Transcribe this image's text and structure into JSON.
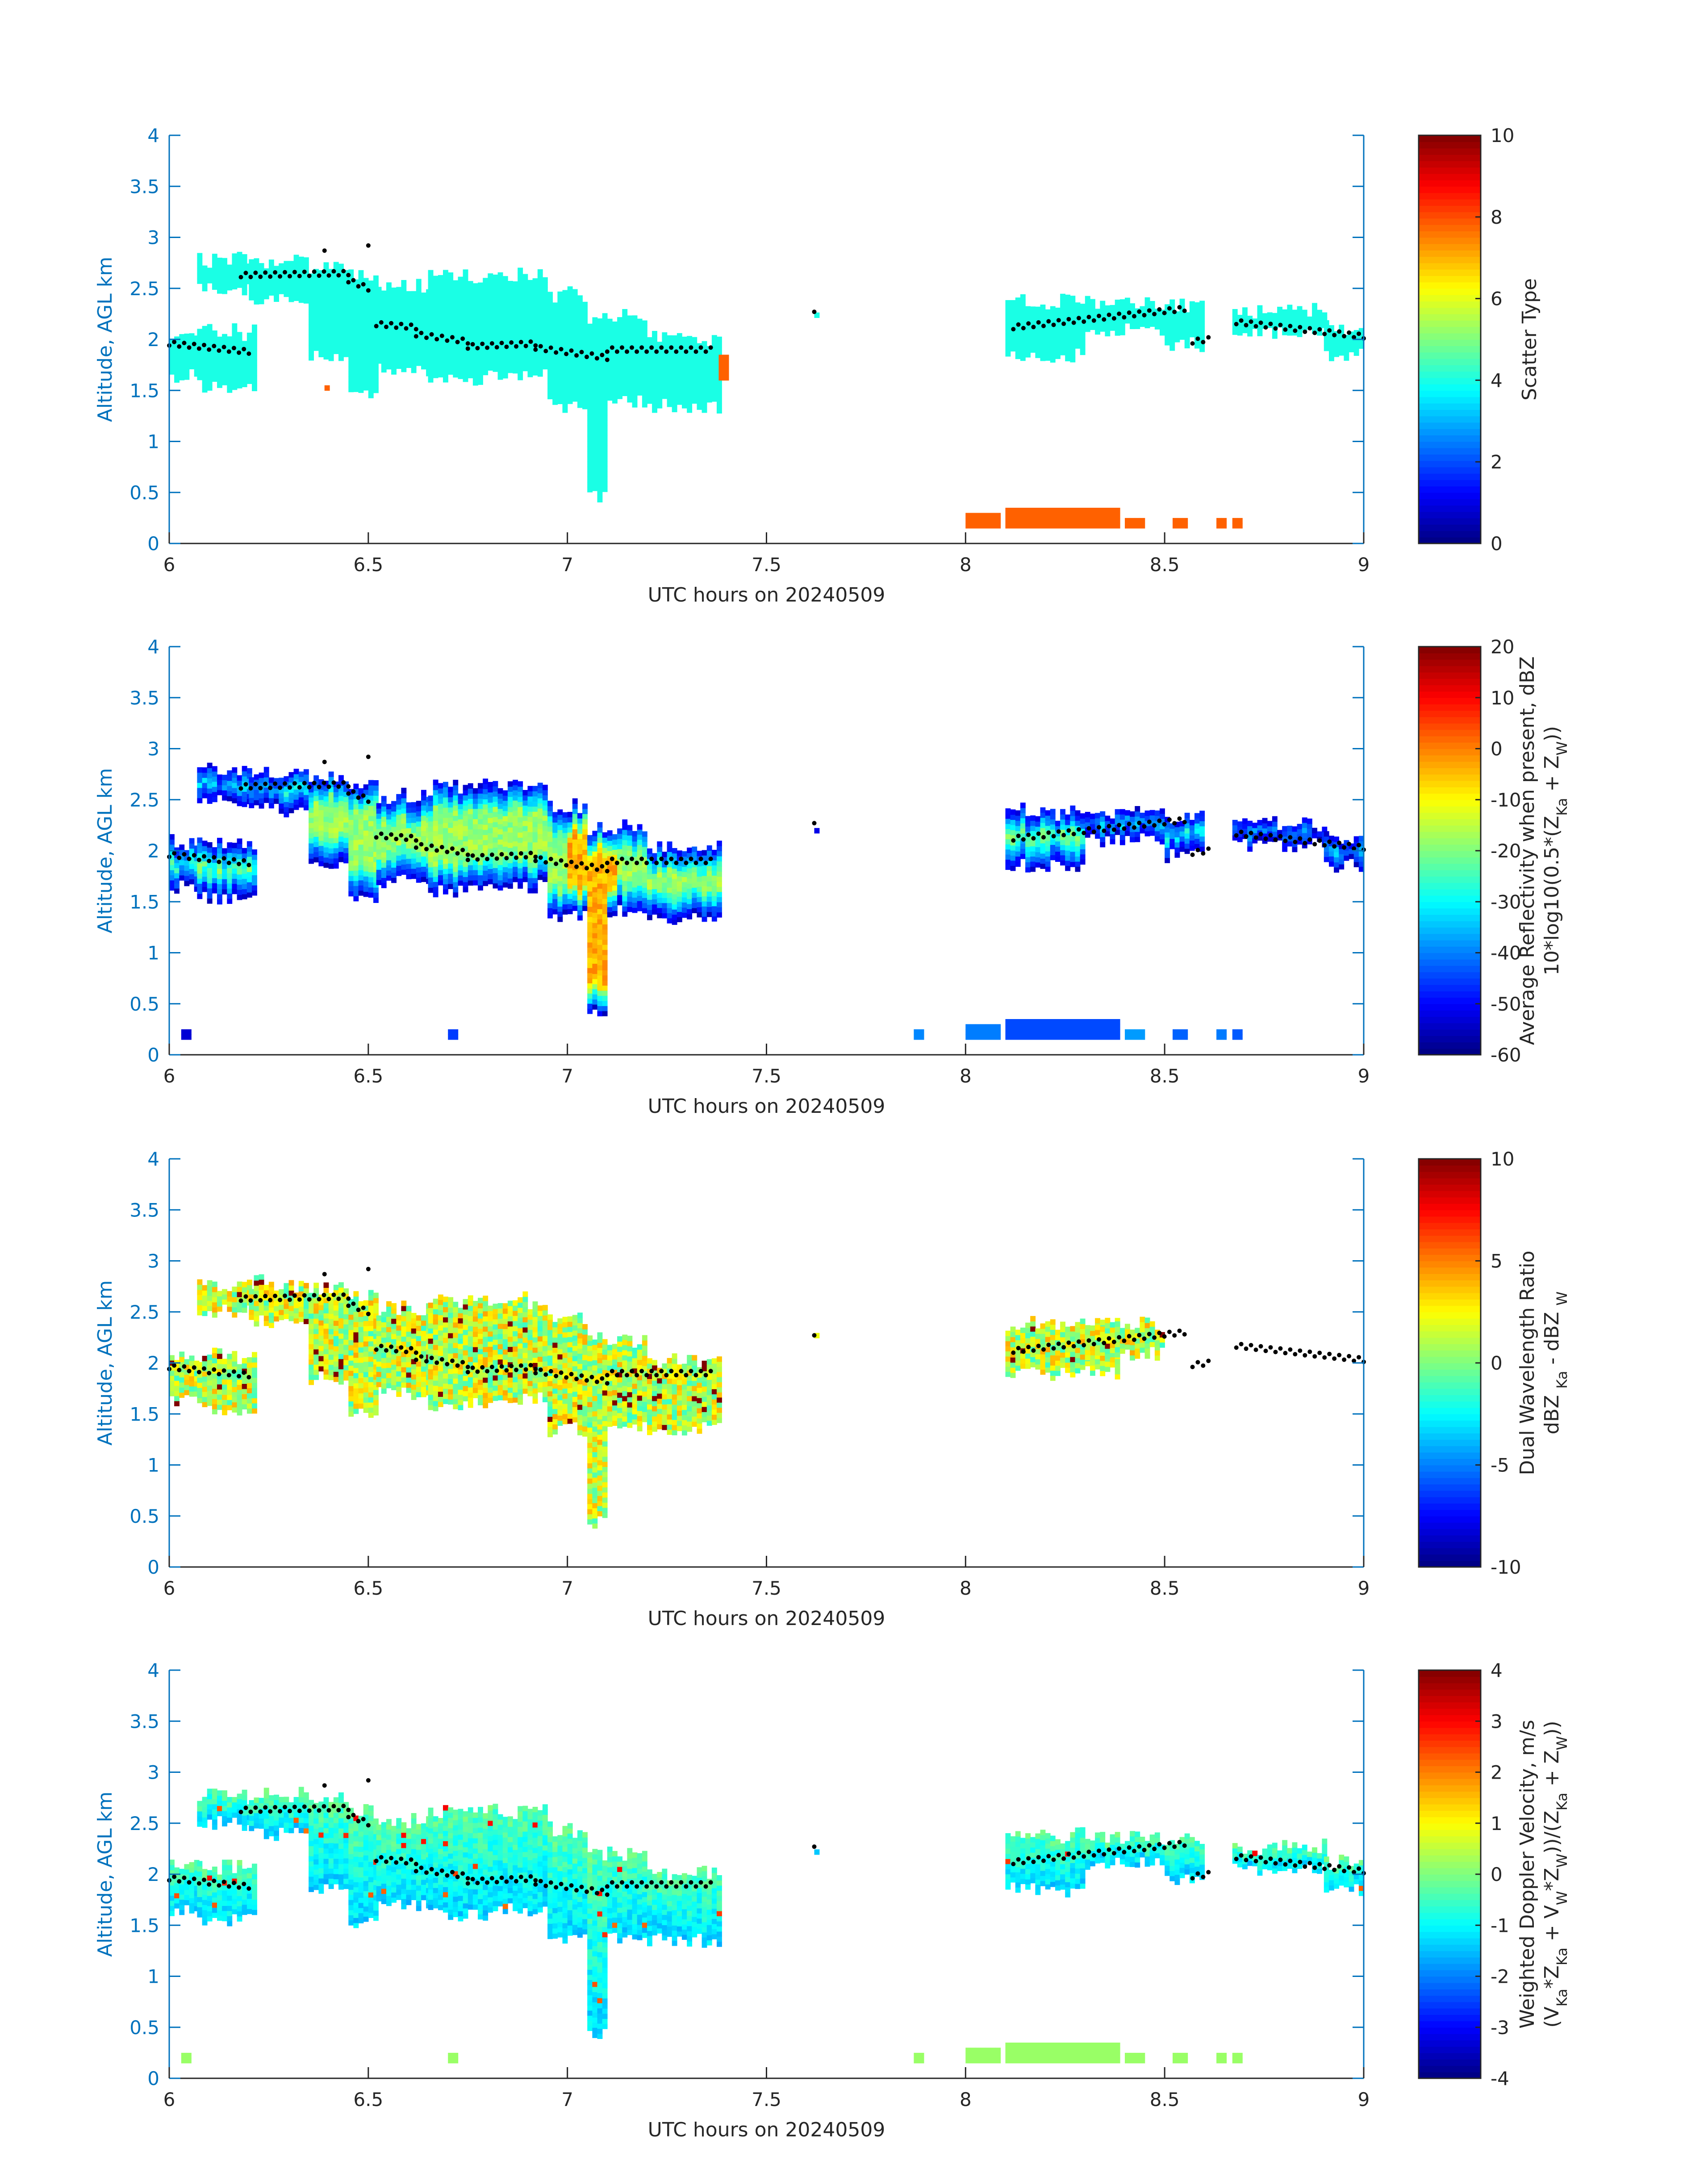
{
  "chart_data": [
    {
      "type": "heatmap",
      "panel": "scatter-type",
      "xlabel": "UTC hours on 20240509",
      "ylabel": "Altitude, AGL km",
      "xlim": [
        6,
        9
      ],
      "ylim": [
        0,
        4
      ],
      "xticks": [
        6,
        6.5,
        7,
        7.5,
        8,
        8.5,
        9
      ],
      "yticks": [
        0,
        0.5,
        1,
        1.5,
        2,
        2.5,
        3,
        3.5,
        4
      ],
      "clim": [
        0,
        10
      ],
      "cticks": [
        0,
        2,
        4,
        6,
        8,
        10
      ],
      "colorbar_label": [
        [
          [
            "Scatter Type",
            false
          ]
        ]
      ],
      "mode": "scatter",
      "cloud_value": 4,
      "low_value": 7.8,
      "show_low": true,
      "show_east": true
    },
    {
      "type": "heatmap",
      "panel": "reflectivity",
      "xlabel": "UTC hours on 20240509",
      "ylabel": "Altitude, AGL km",
      "xlim": [
        6,
        9
      ],
      "ylim": [
        0,
        4
      ],
      "xticks": [
        6,
        6.5,
        7,
        7.5,
        8,
        8.5,
        9
      ],
      "yticks": [
        0,
        0.5,
        1,
        1.5,
        2,
        2.5,
        3,
        3.5,
        4
      ],
      "clim": [
        -60,
        20
      ],
      "cticks": [
        -60,
        -50,
        -40,
        -30,
        -20,
        -10,
        0,
        10,
        20
      ],
      "colorbar_label": [
        [
          [
            "Average Reflectivity when present, dBZ",
            false
          ]
        ],
        [
          [
            "10*log10(0.5*(Z",
            false
          ],
          [
            "Ka",
            true
          ],
          [
            " + Z",
            false
          ],
          [
            "W",
            true
          ],
          [
            "))",
            false
          ]
        ]
      ],
      "mode": "reflectivity",
      "edge_value": -52,
      "core_value": -18,
      "shaft_core_value": -4,
      "low_value": -45,
      "show_low": true,
      "show_east": true
    },
    {
      "type": "heatmap",
      "panel": "dual-wavelength-ratio",
      "xlabel": "UTC hours on 20240509",
      "ylabel": "Altitude, AGL km",
      "xlim": [
        6,
        9
      ],
      "ylim": [
        0,
        4
      ],
      "xticks": [
        6,
        6.5,
        7,
        7.5,
        8,
        8.5,
        9
      ],
      "yticks": [
        0,
        0.5,
        1,
        1.5,
        2,
        2.5,
        3,
        3.5,
        4
      ],
      "clim": [
        -10,
        10
      ],
      "cticks": [
        -10,
        -5,
        0,
        5,
        10
      ],
      "colorbar_label": [
        [
          [
            "Dual Wavelength Ratio",
            false
          ]
        ],
        [
          [
            "dBZ ",
            false
          ],
          [
            "Ka",
            true
          ],
          [
            " - dBZ ",
            false
          ],
          [
            "W",
            true
          ]
        ]
      ],
      "mode": "dwr",
      "mean_value": 1.5,
      "spread": 3,
      "show_low": false,
      "show_east": false
    },
    {
      "type": "heatmap",
      "panel": "doppler-velocity",
      "xlabel": "UTC hours on 20240509",
      "ylabel": "Altitude, AGL km",
      "xlim": [
        6,
        9
      ],
      "ylim": [
        0,
        4
      ],
      "xticks": [
        6,
        6.5,
        7,
        7.5,
        8,
        8.5,
        9
      ],
      "yticks": [
        0,
        0.5,
        1,
        1.5,
        2,
        2.5,
        3,
        3.5,
        4
      ],
      "clim": [
        -4,
        4
      ],
      "cticks": [
        -4,
        -3,
        -2,
        -1,
        0,
        1,
        2,
        3,
        4
      ],
      "colorbar_label": [
        [
          [
            "Weighted Doppler Velocity, m/s",
            false
          ]
        ],
        [
          [
            "(V",
            false
          ],
          [
            "Ka",
            true
          ],
          [
            "*Z",
            false
          ],
          [
            "Ka",
            true
          ],
          [
            " + V",
            false
          ],
          [
            "W",
            true
          ],
          [
            "*Z",
            false
          ],
          [
            "W",
            true
          ],
          [
            "))/(Z",
            false
          ],
          [
            "Ka",
            true
          ],
          [
            " + Z",
            false
          ],
          [
            "W",
            true
          ],
          [
            "))",
            false
          ]
        ]
      ],
      "mode": "doppler",
      "top_value": -0.3,
      "bottom_value": -1.3,
      "low_value": 0.2,
      "show_low": true,
      "show_east": true
    }
  ],
  "cloud_columns": [
    [
      6.0,
      6.07,
      1.65,
      2.05
    ],
    [
      6.07,
      6.22,
      1.55,
      2.05
    ],
    [
      6.07,
      6.2,
      2.5,
      2.75
    ],
    [
      6.2,
      6.35,
      2.4,
      2.75
    ],
    [
      6.35,
      6.45,
      1.85,
      2.7
    ],
    [
      6.45,
      6.52,
      1.5,
      2.6
    ],
    [
      6.52,
      6.65,
      1.7,
      2.5
    ],
    [
      6.65,
      6.8,
      1.6,
      2.6
    ],
    [
      6.8,
      6.95,
      1.65,
      2.6
    ],
    [
      6.95,
      7.05,
      1.35,
      2.4
    ],
    [
      7.05,
      7.1,
      0.45,
      2.2
    ],
    [
      7.1,
      7.2,
      1.4,
      2.2
    ],
    [
      7.2,
      7.38,
      1.35,
      2.0
    ],
    [
      7.62,
      7.63,
      2.2,
      2.35
    ],
    [
      8.1,
      8.3,
      1.85,
      2.35
    ],
    [
      8.3,
      8.5,
      2.1,
      2.35
    ],
    [
      8.5,
      8.6,
      1.95,
      2.3
    ],
    [
      8.67,
      8.9,
      2.05,
      2.25
    ],
    [
      8.9,
      9.0,
      1.85,
      2.1
    ]
  ],
  "east_start": 8.0,
  "extra_cells": [
    [
      6.39,
      6.4,
      1.5,
      1.85
    ],
    [
      7.38,
      7.4,
      1.6,
      1.85
    ]
  ],
  "low_echoes": [
    [
      6.03,
      6.05,
      0.15,
      0.25
    ],
    [
      6.7,
      6.72,
      0.15,
      0.25
    ],
    [
      7.87,
      7.89,
      0.15,
      0.25
    ],
    [
      8.0,
      8.08,
      0.15,
      0.3
    ],
    [
      8.1,
      8.38,
      0.15,
      0.35
    ],
    [
      8.4,
      8.44,
      0.15,
      0.25
    ],
    [
      8.52,
      8.55,
      0.15,
      0.25
    ],
    [
      8.63,
      8.65,
      0.15,
      0.22
    ],
    [
      8.67,
      8.69,
      0.15,
      0.22
    ]
  ],
  "cloud_marker_segments": [
    [
      6.0,
      6.2,
      1.96,
      1.88
    ],
    [
      6.18,
      6.45,
      2.63,
      2.65
    ],
    [
      6.45,
      6.5,
      2.58,
      2.5
    ],
    [
      6.52,
      6.62,
      2.15,
      2.12
    ],
    [
      6.62,
      6.75,
      2.05,
      1.98
    ],
    [
      6.75,
      6.92,
      1.93,
      1.96
    ],
    [
      6.92,
      7.1,
      1.92,
      1.82
    ],
    [
      7.1,
      7.36,
      1.9,
      1.9
    ],
    [
      8.12,
      8.55,
      2.12,
      2.3
    ],
    [
      8.57,
      8.61,
      1.98,
      2.0
    ],
    [
      8.68,
      9.0,
      2.17,
      2.03
    ]
  ],
  "cloud_marker_points": [
    [
      6.39,
      2.87
    ],
    [
      6.5,
      2.92
    ],
    [
      7.62,
      2.27
    ]
  ]
}
